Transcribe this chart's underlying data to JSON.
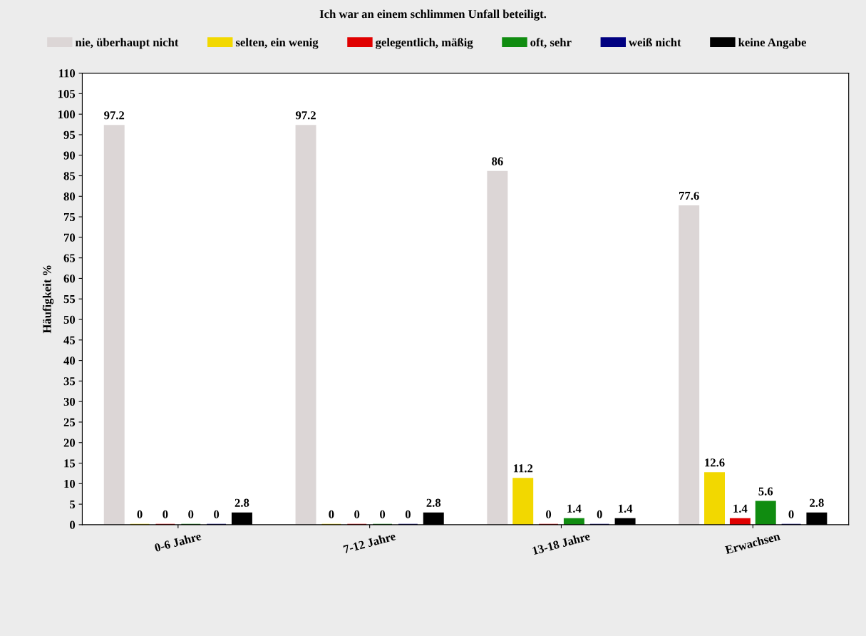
{
  "chart_data": {
    "type": "bar",
    "title": "Ich war an einem schlimmen Unfall beteiligt.",
    "ylabel": "Häufigkeit %",
    "categories": [
      "0-6 Jahre",
      "7-12 Jahre",
      "13-18 Jahre",
      "Erwachsen"
    ],
    "series": [
      {
        "name": "nie, überhaupt nicht",
        "color": "#dcd6d6",
        "values": [
          97.2,
          97.2,
          86,
          77.6
        ]
      },
      {
        "name": "selten, ein wenig",
        "color": "#f2d800",
        "values": [
          0,
          0,
          11.2,
          12.6
        ]
      },
      {
        "name": "gelegentlich, mäßig",
        "color": "#e00000",
        "values": [
          0,
          0,
          0,
          1.4
        ]
      },
      {
        "name": "oft, sehr",
        "color": "#108c10",
        "values": [
          0,
          0,
          1.4,
          5.6
        ]
      },
      {
        "name": "weiß nicht",
        "color": "#000080",
        "values": [
          0,
          0,
          0,
          0
        ]
      },
      {
        "name": "keine Angabe",
        "color": "#000000",
        "values": [
          2.8,
          2.8,
          1.4,
          2.8
        ]
      }
    ],
    "ylim": [
      0,
      110
    ],
    "yticks": [
      0,
      5,
      10,
      15,
      20,
      25,
      30,
      35,
      40,
      45,
      50,
      55,
      60,
      65,
      70,
      75,
      80,
      85,
      90,
      95,
      100,
      105,
      110
    ],
    "data_labels": true,
    "legend": "top",
    "grid": false
  }
}
